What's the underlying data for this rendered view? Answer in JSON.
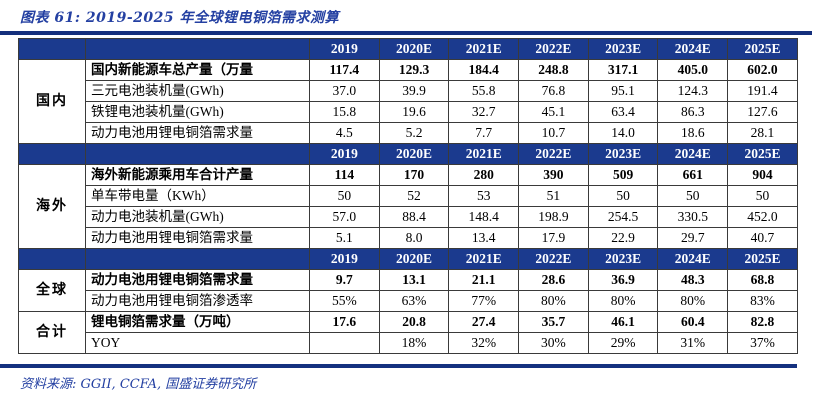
{
  "title": "图表 61:  2019-2025 年全球锂电铜箔需求测算",
  "source": "资料来源: GGII, CCFA, 国盛证券研究所",
  "colors": {
    "header_bg": "#1b3a8e",
    "rule_navy": "#14317f",
    "title_blue": "#2440a2",
    "cell_border": "#3a3a3a"
  },
  "table": {
    "year_headers": [
      "2019",
      "2020E",
      "2021E",
      "2022E",
      "2023E",
      "2024E",
      "2025E"
    ],
    "groups": [
      {
        "name": "国内",
        "header_band": true,
        "rows": [
          {
            "label": "国内新能源车总产量（万量",
            "bold": true,
            "values": [
              "117.4",
              "129.3",
              "184.4",
              "248.8",
              "317.1",
              "405.0",
              "602.0"
            ]
          },
          {
            "label": "三元电池装机量(GWh)",
            "bold": false,
            "values": [
              "37.0",
              "39.9",
              "55.8",
              "76.8",
              "95.1",
              "124.3",
              "191.4"
            ]
          },
          {
            "label": "铁锂电池装机量(GWh)",
            "bold": false,
            "values": [
              "15.8",
              "19.6",
              "32.7",
              "45.1",
              "63.4",
              "86.3",
              "127.6"
            ]
          },
          {
            "label": "动力电池用锂电铜箔需求量",
            "bold": false,
            "values": [
              "4.5",
              "5.2",
              "7.7",
              "10.7",
              "14.0",
              "18.6",
              "28.1"
            ]
          }
        ]
      },
      {
        "name": "海外",
        "header_band": true,
        "rows": [
          {
            "label": "海外新能源乘用车合计产量",
            "bold": true,
            "values": [
              "114",
              "170",
              "280",
              "390",
              "509",
              "661",
              "904"
            ]
          },
          {
            "label": "单车带电量（KWh）",
            "bold": false,
            "values": [
              "50",
              "52",
              "53",
              "51",
              "50",
              "50",
              "50"
            ]
          },
          {
            "label": "动力电池装机量(GWh)",
            "bold": false,
            "values": [
              "57.0",
              "88.4",
              "148.4",
              "198.9",
              "254.5",
              "330.5",
              "452.0"
            ]
          },
          {
            "label": "动力电池用锂电铜箔需求量",
            "bold": false,
            "values": [
              "5.1",
              "8.0",
              "13.4",
              "17.9",
              "22.9",
              "29.7",
              "40.7"
            ]
          }
        ]
      },
      {
        "name": "全球",
        "header_band": true,
        "rows": [
          {
            "label": "动力电池用锂电铜箔需求量",
            "bold": true,
            "values": [
              "9.7",
              "13.1",
              "21.1",
              "28.6",
              "36.9",
              "48.3",
              "68.8"
            ]
          },
          {
            "label": "动力电池用锂电铜箔渗透率",
            "bold": false,
            "values": [
              "55%",
              "63%",
              "77%",
              "80%",
              "80%",
              "80%",
              "83%"
            ]
          }
        ]
      },
      {
        "name": "合计",
        "header_band": false,
        "rows": [
          {
            "label": "锂电铜箔需求量（万吨）",
            "bold": true,
            "values": [
              "17.6",
              "20.8",
              "27.4",
              "35.7",
              "46.1",
              "60.4",
              "82.8"
            ]
          },
          {
            "label": "YOY",
            "bold": false,
            "values": [
              "",
              "18%",
              "32%",
              "30%",
              "29%",
              "31%",
              "37%"
            ]
          }
        ]
      }
    ]
  }
}
